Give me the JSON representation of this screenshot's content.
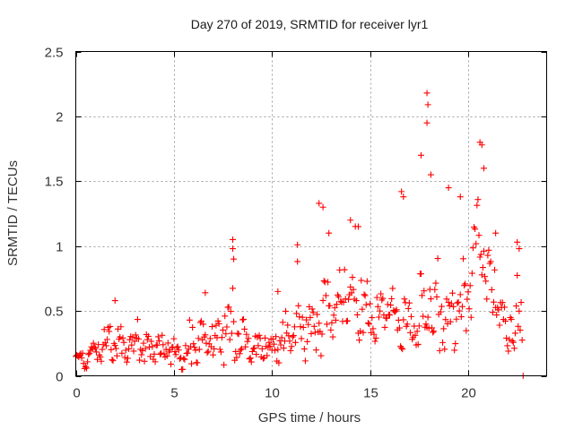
{
  "chart_data": {
    "type": "scatter",
    "title": "Day 270 of 2019, SRMTID for receiver lyr1",
    "xlabel": "GPS time / hours",
    "ylabel": "SRMTID / TECUs",
    "xlim": [
      0,
      24
    ],
    "ylim": [
      0,
      2.5
    ],
    "x_ticks": [
      0,
      5,
      10,
      15,
      20
    ],
    "x_tick_labels": [
      "0",
      "5",
      "10",
      "15",
      "20"
    ],
    "y_ticks": [
      0,
      0.5,
      1,
      1.5,
      2,
      2.5
    ],
    "y_tick_labels": [
      "0",
      "0.5",
      "1",
      "1.5",
      "2",
      "2.5"
    ],
    "grid": true,
    "legend": "none",
    "marker": "plus",
    "series": [
      {
        "name": "lyr1",
        "color": "#ff0000",
        "envelope": [
          {
            "t": 0.0,
            "base": 0.12,
            "spread": 0.1
          },
          {
            "t": 0.5,
            "base": 0.12,
            "spread": 0.08
          },
          {
            "t": 1.0,
            "base": 0.2,
            "spread": 0.12
          },
          {
            "t": 1.5,
            "base": 0.25,
            "spread": 0.12
          },
          {
            "t": 2.0,
            "base": 0.32,
            "spread": 0.2
          },
          {
            "t": 2.5,
            "base": 0.2,
            "spread": 0.12
          },
          {
            "t": 3.0,
            "base": 0.24,
            "spread": 0.15
          },
          {
            "t": 3.5,
            "base": 0.22,
            "spread": 0.14
          },
          {
            "t": 4.0,
            "base": 0.22,
            "spread": 0.12
          },
          {
            "t": 4.5,
            "base": 0.2,
            "spread": 0.1
          },
          {
            "t": 5.0,
            "base": 0.18,
            "spread": 0.12
          },
          {
            "t": 5.5,
            "base": 0.15,
            "spread": 0.12
          },
          {
            "t": 6.0,
            "base": 0.2,
            "spread": 0.18
          },
          {
            "t": 6.5,
            "base": 0.28,
            "spread": 0.18
          },
          {
            "t": 7.0,
            "base": 0.28,
            "spread": 0.2
          },
          {
            "t": 7.5,
            "base": 0.3,
            "spread": 0.2
          },
          {
            "t": 8.0,
            "base": 0.35,
            "spread": 0.25
          },
          {
            "t": 8.5,
            "base": 0.28,
            "spread": 0.18
          },
          {
            "t": 9.0,
            "base": 0.22,
            "spread": 0.12
          },
          {
            "t": 9.5,
            "base": 0.2,
            "spread": 0.1
          },
          {
            "t": 10.0,
            "base": 0.2,
            "spread": 0.12
          },
          {
            "t": 10.5,
            "base": 0.28,
            "spread": 0.18
          },
          {
            "t": 11.0,
            "base": 0.35,
            "spread": 0.22
          },
          {
            "t": 11.5,
            "base": 0.35,
            "spread": 0.22
          },
          {
            "t": 12.0,
            "base": 0.4,
            "spread": 0.25
          },
          {
            "t": 12.5,
            "base": 0.45,
            "spread": 0.28
          },
          {
            "t": 13.0,
            "base": 0.55,
            "spread": 0.25
          },
          {
            "t": 13.5,
            "base": 0.55,
            "spread": 0.28
          },
          {
            "t": 14.0,
            "base": 0.6,
            "spread": 0.3
          },
          {
            "t": 14.5,
            "base": 0.55,
            "spread": 0.28
          },
          {
            "t": 15.0,
            "base": 0.45,
            "spread": 0.22
          },
          {
            "t": 15.5,
            "base": 0.45,
            "spread": 0.2
          },
          {
            "t": 16.0,
            "base": 0.5,
            "spread": 0.22
          },
          {
            "t": 16.5,
            "base": 0.45,
            "spread": 0.25
          },
          {
            "t": 17.0,
            "base": 0.4,
            "spread": 0.22
          },
          {
            "t": 17.5,
            "base": 0.35,
            "spread": 0.22
          },
          {
            "t": 18.0,
            "base": 0.55,
            "spread": 0.35
          },
          {
            "t": 18.5,
            "base": 0.45,
            "spread": 0.28
          },
          {
            "t": 19.0,
            "base": 0.4,
            "spread": 0.25
          },
          {
            "t": 19.5,
            "base": 0.5,
            "spread": 0.28
          },
          {
            "t": 20.0,
            "base": 0.6,
            "spread": 0.3
          },
          {
            "t": 20.5,
            "base": 1.1,
            "spread": 0.35
          },
          {
            "t": 21.0,
            "base": 0.75,
            "spread": 0.3
          },
          {
            "t": 21.5,
            "base": 0.55,
            "spread": 0.25
          },
          {
            "t": 22.0,
            "base": 0.3,
            "spread": 0.15
          },
          {
            "t": 22.5,
            "base": 0.45,
            "spread": 0.3
          },
          {
            "t": 22.8,
            "base": 0.4,
            "spread": 0.25
          }
        ],
        "notable_points": [
          {
            "t": 2.0,
            "v": 0.58
          },
          {
            "t": 6.6,
            "v": 0.64
          },
          {
            "t": 8.0,
            "v": 1.05
          },
          {
            "t": 8.0,
            "v": 0.98
          },
          {
            "t": 8.05,
            "v": 0.9
          },
          {
            "t": 10.3,
            "v": 0.65
          },
          {
            "t": 11.3,
            "v": 1.01
          },
          {
            "t": 12.4,
            "v": 1.33
          },
          {
            "t": 12.6,
            "v": 1.3
          },
          {
            "t": 12.9,
            "v": 1.1
          },
          {
            "t": 14.0,
            "v": 1.2
          },
          {
            "t": 14.4,
            "v": 1.15
          },
          {
            "t": 16.6,
            "v": 1.42
          },
          {
            "t": 16.7,
            "v": 1.38
          },
          {
            "t": 17.6,
            "v": 1.7
          },
          {
            "t": 17.9,
            "v": 2.18
          },
          {
            "t": 17.95,
            "v": 2.09
          },
          {
            "t": 17.9,
            "v": 1.95
          },
          {
            "t": 18.1,
            "v": 1.55
          },
          {
            "t": 19.0,
            "v": 1.45
          },
          {
            "t": 19.6,
            "v": 1.38
          },
          {
            "t": 20.6,
            "v": 1.8
          },
          {
            "t": 20.7,
            "v": 1.78
          },
          {
            "t": 20.8,
            "v": 1.6
          },
          {
            "t": 21.4,
            "v": 1.1
          },
          {
            "t": 22.5,
            "v": 1.03
          },
          {
            "t": 22.6,
            "v": 0.98
          },
          {
            "t": 22.8,
            "v": 0.0
          }
        ],
        "t_start": 0.0,
        "t_end": 22.8,
        "sample_interval_hours": 0.0125
      }
    ]
  }
}
